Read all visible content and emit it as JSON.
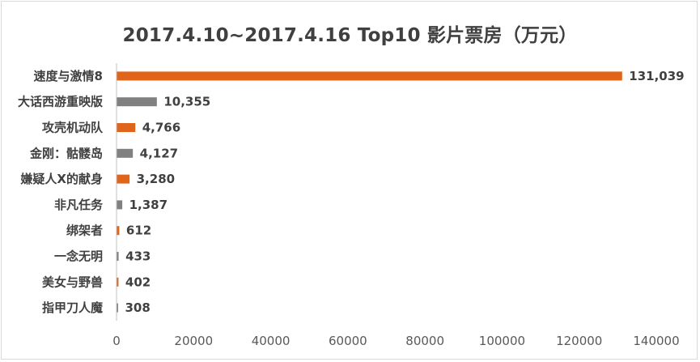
{
  "chart_data": {
    "type": "bar",
    "orientation": "horizontal",
    "title": "2017.4.10~2017.4.16 Top10 影片票房（万元）",
    "categories": [
      "速度与激情8",
      "大话西游重映版",
      "攻壳机动队",
      "金刚：骷髅岛",
      "嫌疑人X的献身",
      "非凡任务",
      "绑架者",
      "一念无明",
      "美女与野兽",
      "指甲刀人魔"
    ],
    "values": [
      131039,
      10355,
      4766,
      4127,
      3280,
      1387,
      612,
      433,
      402,
      308
    ],
    "value_labels": [
      "131,039",
      "10,355",
      "4,766",
      "4,127",
      "3,280",
      "1,387",
      "612",
      "433",
      "402",
      "308"
    ],
    "bar_colors": [
      "#e0651b",
      "#808080",
      "#e0651b",
      "#808080",
      "#e0651b",
      "#808080",
      "#e0651b",
      "#808080",
      "#e0651b",
      "#808080"
    ],
    "xlim": [
      0,
      140000
    ],
    "xticks": [
      "0",
      "20000",
      "40000",
      "60000",
      "80000",
      "100000",
      "120000",
      "140000"
    ],
    "grid": false,
    "legend": "none"
  }
}
